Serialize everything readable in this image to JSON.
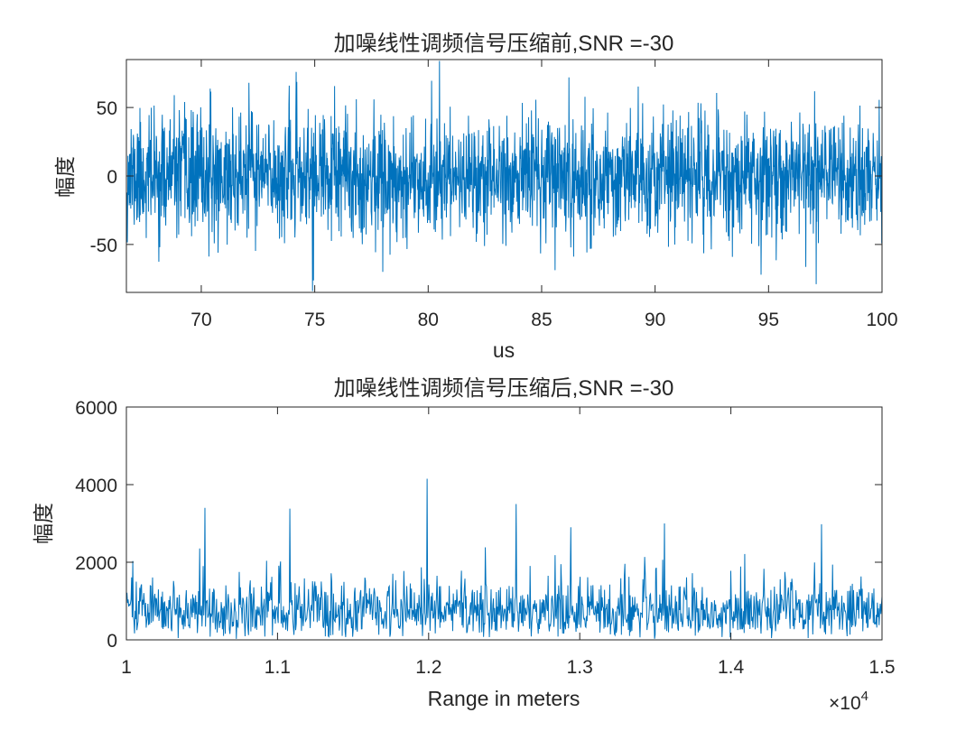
{
  "chart_data": [
    {
      "type": "line",
      "title": "加噪线性调频信号压缩前,SNR =-30",
      "xlabel": "us",
      "ylabel": "幅度",
      "xlim": [
        66.7,
        100
      ],
      "ylim": [
        -85,
        85
      ],
      "xticks": [
        70,
        75,
        80,
        85,
        90,
        95,
        100
      ],
      "yticks": [
        -50,
        0,
        50
      ],
      "grid": false,
      "series": [
        {
          "color": "#0072BD",
          "generator": {
            "kind": "gaussian-noise",
            "count": 2400,
            "seed": 11,
            "mean": 0,
            "std": 22,
            "min": -84,
            "max": 84
          },
          "peaks": [
            {
              "x": 80.5,
              "y": 84
            },
            {
              "x": 74.9,
              "y": -84
            },
            {
              "x": 72.1,
              "y": 68
            },
            {
              "x": 97.1,
              "y": -79
            },
            {
              "x": 86.2,
              "y": 72
            },
            {
              "x": 78.0,
              "y": -70
            }
          ]
        }
      ]
    },
    {
      "type": "line",
      "title": "加噪线性调频信号压缩后,SNR =-30",
      "xlabel": "Range in meters",
      "ylabel": "幅度",
      "xlim": [
        10000,
        15000
      ],
      "ylim": [
        0,
        6000
      ],
      "xticks": [
        10000,
        11000,
        12000,
        13000,
        14000,
        15000
      ],
      "xtick_labels": [
        "1",
        "1.1",
        "1.2",
        "1.3",
        "1.4",
        "1.5"
      ],
      "x_exponent_label": "×10",
      "x_exponent_power": "4",
      "yticks": [
        0,
        2000,
        4000,
        6000
      ],
      "grid": false,
      "series": [
        {
          "color": "#0072BD",
          "generator": {
            "kind": "rayleigh-noise",
            "count": 1300,
            "seed": 29,
            "scale": 780,
            "min": 0,
            "max": 3100
          },
          "peaks": [
            {
              "x": 11990,
              "y": 4150
            },
            {
              "x": 10520,
              "y": 3400
            },
            {
              "x": 11080,
              "y": 3380
            },
            {
              "x": 12580,
              "y": 3500
            },
            {
              "x": 14600,
              "y": 2980
            },
            {
              "x": 13560,
              "y": 3000
            },
            {
              "x": 12940,
              "y": 2900
            }
          ]
        }
      ]
    }
  ]
}
